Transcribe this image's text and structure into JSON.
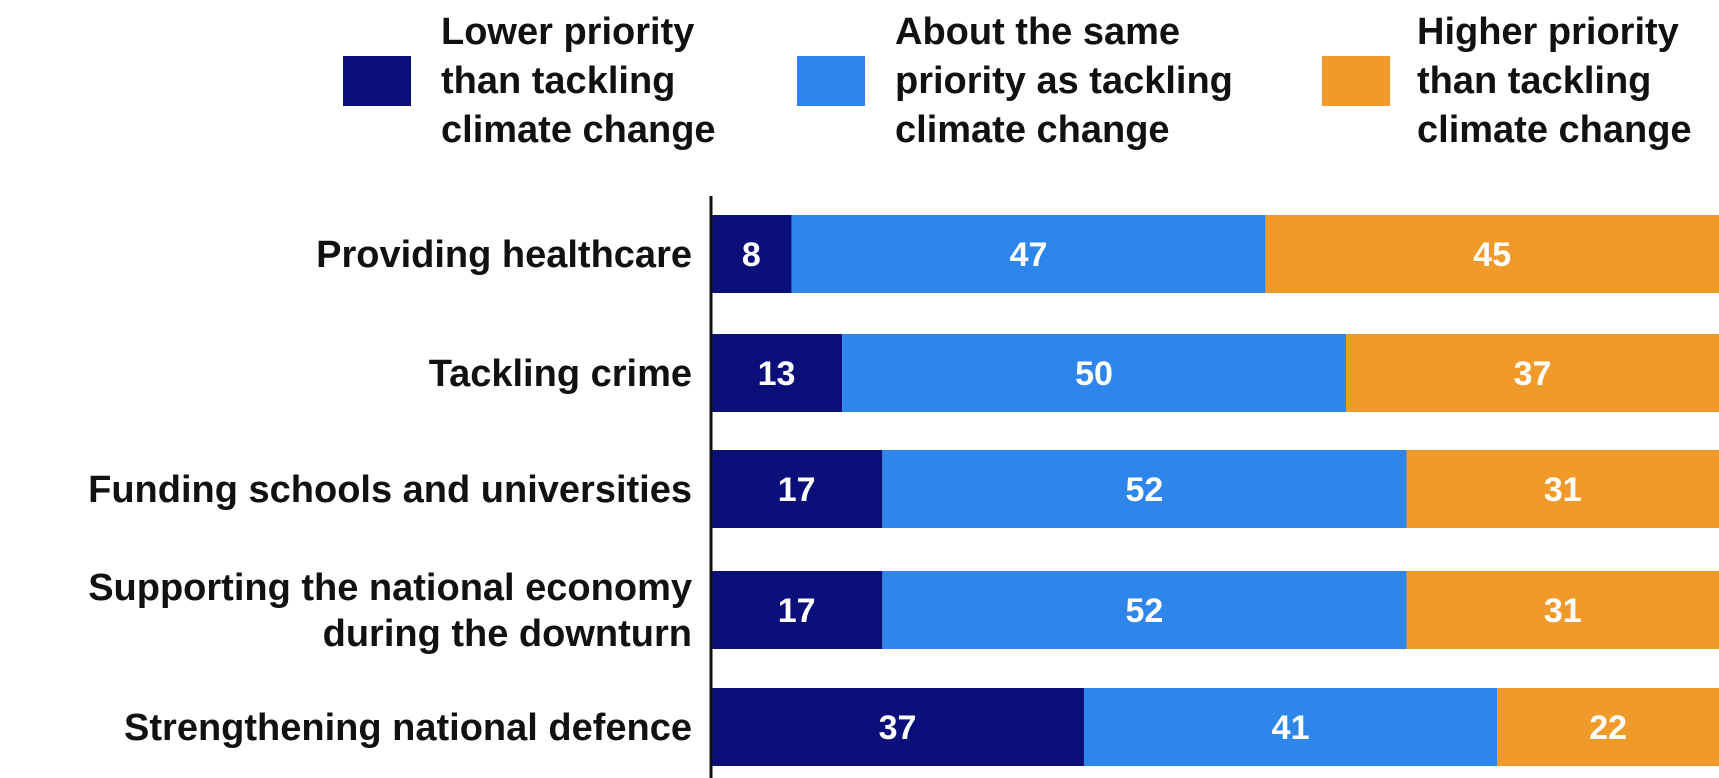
{
  "chart_data": {
    "type": "bar",
    "orientation": "horizontal",
    "stacked": true,
    "title": "",
    "xlabel": "",
    "ylabel": "",
    "xlim": [
      0,
      100
    ],
    "grid": false,
    "legend_position": "top",
    "categories": [
      [
        "Providing healthcare"
      ],
      [
        "Tackling crime"
      ],
      [
        "Funding schools and universities"
      ],
      [
        "Supporting the national economy",
        "during the downturn"
      ],
      [
        "Strengthening national defence"
      ]
    ],
    "series": [
      {
        "name": [
          "Lower priority",
          "than tackling",
          "climate change"
        ],
        "color": "#0a0f7a",
        "values": [
          8,
          13,
          17,
          17,
          37
        ]
      },
      {
        "name": [
          "About the same",
          "priority as tackling",
          "climate change"
        ],
        "color": "#2f86ea",
        "values": [
          47,
          50,
          52,
          52,
          41
        ]
      },
      {
        "name": [
          "Higher priority",
          "than tackling",
          "climate change"
        ],
        "color": "#f09a2b",
        "values": [
          45,
          37,
          31,
          31,
          22
        ]
      }
    ]
  }
}
